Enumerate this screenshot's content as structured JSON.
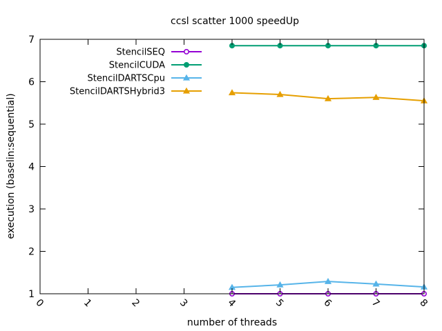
{
  "chart_data": {
    "type": "line",
    "title": "ccsl scatter 1000 speedUp",
    "xlabel": "number of threads",
    "ylabel": "execution (baselin:sequential)",
    "xlim": [
      0,
      8
    ],
    "ylim": [
      1,
      7
    ],
    "x_ticks": [
      "0",
      "1",
      "2",
      "3",
      "4",
      "5",
      "6",
      "7",
      "8"
    ],
    "y_ticks": [
      "1",
      "2",
      "3",
      "4",
      "5",
      "6",
      "7"
    ],
    "grid": false,
    "legend_position": "top-left",
    "x": [
      4,
      5,
      6,
      7,
      8
    ],
    "series": [
      {
        "name": "StencilSEQ",
        "color": "#9400d3",
        "marker": "circle-open",
        "values": [
          1.0,
          1.0,
          1.0,
          1.0,
          1.0
        ]
      },
      {
        "name": "StencilCUDA",
        "color": "#009e73",
        "marker": "circle-filled",
        "values": [
          6.85,
          6.85,
          6.85,
          6.85,
          6.85
        ]
      },
      {
        "name": "StencilDARTSCpu",
        "color": "#56b4e9",
        "marker": "triangle-filled",
        "values": [
          1.15,
          1.21,
          1.29,
          1.23,
          1.16
        ]
      },
      {
        "name": "StencilDARTSHybrid3",
        "color": "#e69f00",
        "marker": "triangle-filled",
        "values": [
          5.74,
          5.7,
          5.6,
          5.63,
          5.55
        ]
      }
    ]
  }
}
